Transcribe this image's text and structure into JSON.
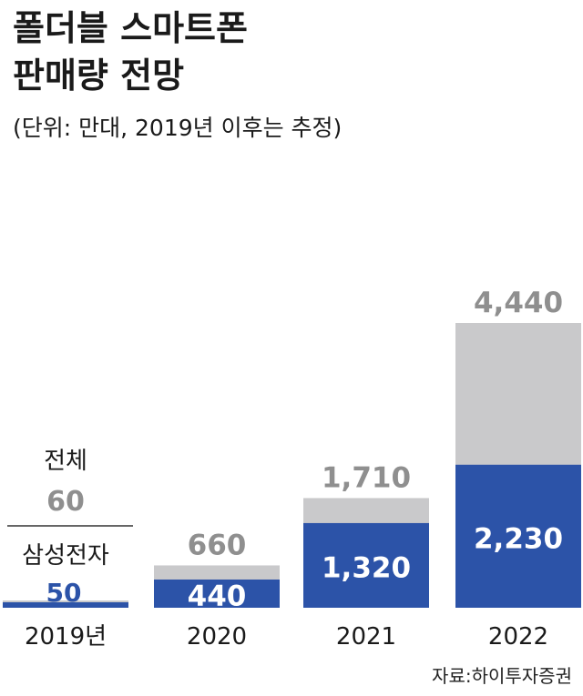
{
  "title_lines": [
    "폴더블 스마트폰",
    "판매량 전망"
  ],
  "subtitle": "(단위: 만대, 2019년 이후는 추정)",
  "source": "자료:하이투자증권",
  "chart_data": {
    "type": "bar",
    "stacked": "overlay",
    "categories": [
      "2019년",
      "2020",
      "2021",
      "2022"
    ],
    "series": [
      {
        "name": "전체",
        "values": [
          60,
          660,
          1710,
          4440
        ],
        "color": "#c9c9cb"
      },
      {
        "name": "삼성전자",
        "values": [
          50,
          440,
          1320,
          2230
        ],
        "color": "#2c53a8"
      }
    ],
    "total_labels": [
      "60",
      "660",
      "1,710",
      "4,440"
    ],
    "samsung_labels": [
      "50",
      "440",
      "1,320",
      "2,230"
    ],
    "legend_2019": [
      "전체",
      "삼성전자"
    ],
    "ylim": [
      0,
      4440
    ],
    "grid": false,
    "legend": "inline-left",
    "label_color_total": "#8f8f8f",
    "label_color_inside": "#ffffff"
  }
}
